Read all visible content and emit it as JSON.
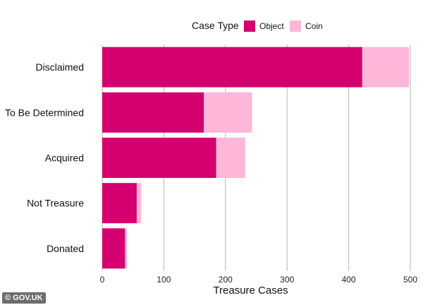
{
  "chart_data": {
    "type": "bar",
    "orientation": "horizontal",
    "stacked": true,
    "categories": [
      "Disclaimed",
      "To Be Determined",
      "Acquired",
      "Not Treasure",
      "Donated"
    ],
    "series": [
      {
        "name": "Object",
        "color": "#d4006f",
        "values": [
          422,
          165,
          185,
          56,
          37
        ]
      },
      {
        "name": "Coin",
        "color": "#ffb6d9",
        "values": [
          76,
          78,
          47,
          7,
          3
        ]
      }
    ],
    "xlabel": "Treasure Cases",
    "ylabel": "",
    "xlim": [
      0,
      500
    ],
    "xticks": [
      0,
      100,
      200,
      300,
      400,
      500
    ],
    "grid": true,
    "legend": {
      "title": "Case Type",
      "position": "top"
    }
  },
  "source_badge": "© GOV.UK"
}
